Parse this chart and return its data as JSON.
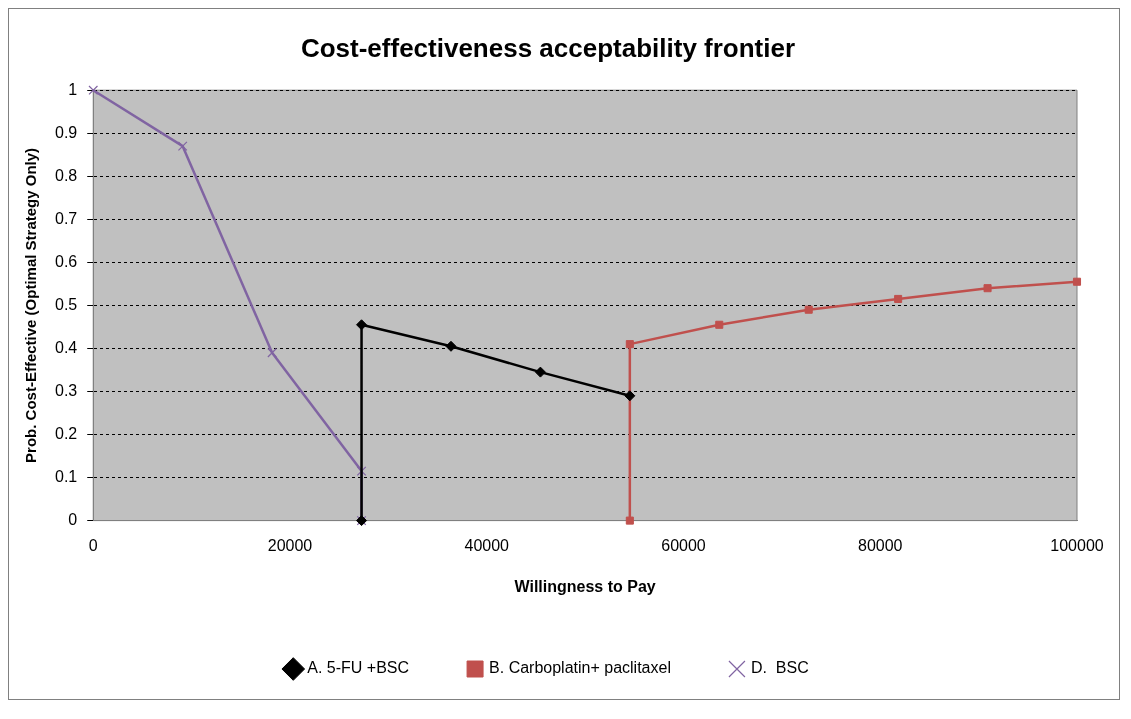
{
  "chart_data": {
    "type": "line",
    "title": "Cost-effectiveness acceptability frontier",
    "xlabel": "Willingness to Pay",
    "ylabel": "Prob. Cost-Effective (Optimal Strategy Only)",
    "series": [
      {
        "name": "A. 5-FU +BSC",
        "color": "#000000",
        "marker": "diamond",
        "x": [
          27273,
          27273,
          36364,
          45455,
          54545
        ],
        "values": [
          0,
          0.455,
          0.405,
          0.345,
          0.29
        ]
      },
      {
        "name": "B. Carboplatin+ paclitaxel",
        "color": "#c0504d",
        "marker": "square",
        "x": [
          54545,
          54545,
          63636,
          72727,
          81818,
          90909,
          100000
        ],
        "values": [
          0,
          0.41,
          0.455,
          0.49,
          0.515,
          0.54,
          0.555
        ]
      },
      {
        "name": "D.  BSC",
        "color": "#8064a2",
        "marker": "cross",
        "x": [
          0,
          9091,
          18182,
          27273,
          27273
        ],
        "values": [
          1,
          0.87,
          0.39,
          0.115,
          0
        ]
      }
    ],
    "xlim": [
      0,
      100000
    ],
    "xticks": [
      0,
      20000,
      40000,
      60000,
      80000,
      100000
    ],
    "ylim": [
      0,
      1
    ],
    "yticks": [
      0,
      0.1,
      0.2,
      0.3,
      0.4,
      0.5,
      0.6,
      0.7,
      0.8,
      0.9,
      1
    ],
    "grid": "y",
    "legend": "bottom"
  }
}
